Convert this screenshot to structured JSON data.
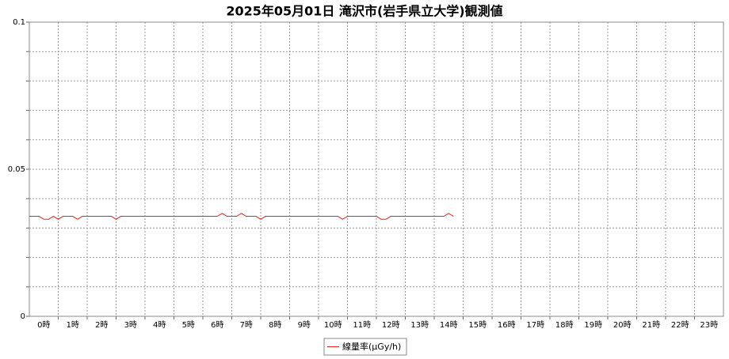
{
  "chart_data": {
    "type": "line",
    "title": "2025年05月01日 滝沢市(岩手県立大学)観測値",
    "x": [
      0,
      10,
      20,
      30,
      40,
      50,
      60,
      70,
      80,
      90,
      100,
      110,
      120,
      130,
      140,
      150,
      160,
      170,
      180,
      190,
      200,
      210,
      220,
      230,
      240,
      250,
      260,
      270,
      280,
      290,
      300,
      310,
      320,
      330,
      340,
      350,
      360,
      370,
      380,
      390,
      400,
      410,
      420,
      430,
      440,
      450,
      460,
      470,
      480,
      490,
      500,
      510,
      520,
      530,
      540,
      550,
      560,
      570,
      580,
      590,
      600,
      610,
      620,
      630,
      640,
      650,
      660,
      670,
      680,
      690,
      700,
      710,
      720,
      730,
      740,
      750,
      760,
      770,
      780,
      790,
      800,
      810,
      820,
      830,
      840,
      850,
      860,
      870,
      880
    ],
    "series": [
      {
        "name": "線量率(μGy/h)",
        "color": "#e8231c",
        "values": [
          0.034,
          0.034,
          0.034,
          0.033,
          0.033,
          0.034,
          0.033,
          0.034,
          0.034,
          0.034,
          0.033,
          0.034,
          0.034,
          0.034,
          0.034,
          0.034,
          0.034,
          0.034,
          0.033,
          0.034,
          0.034,
          0.034,
          0.034,
          0.034,
          0.034,
          0.034,
          0.034,
          0.034,
          0.034,
          0.034,
          0.034,
          0.034,
          0.034,
          0.034,
          0.034,
          0.034,
          0.034,
          0.034,
          0.034,
          0.034,
          0.035,
          0.034,
          0.034,
          0.034,
          0.035,
          0.034,
          0.034,
          0.034,
          0.033,
          0.034,
          0.034,
          0.034,
          0.034,
          0.034,
          0.034,
          0.034,
          0.034,
          0.034,
          0.034,
          0.034,
          0.034,
          0.034,
          0.034,
          0.034,
          0.034,
          0.033,
          0.034,
          0.034,
          0.034,
          0.034,
          0.034,
          0.034,
          0.034,
          0.033,
          0.033,
          0.034,
          0.034,
          0.034,
          0.034,
          0.034,
          0.034,
          0.034,
          0.034,
          0.034,
          0.034,
          0.034,
          0.034,
          0.035,
          0.034
        ]
      }
    ],
    "xlim": [
      0,
      1440
    ],
    "xticks": [
      {
        "value": 30,
        "label": "0時"
      },
      {
        "value": 90,
        "label": "1時"
      },
      {
        "value": 150,
        "label": "2時"
      },
      {
        "value": 210,
        "label": "3時"
      },
      {
        "value": 270,
        "label": "4時"
      },
      {
        "value": 330,
        "label": "5時"
      },
      {
        "value": 390,
        "label": "6時"
      },
      {
        "value": 450,
        "label": "7時"
      },
      {
        "value": 510,
        "label": "8時"
      },
      {
        "value": 570,
        "label": "9時"
      },
      {
        "value": 630,
        "label": "10時"
      },
      {
        "value": 690,
        "label": "11時"
      },
      {
        "value": 750,
        "label": "12時"
      },
      {
        "value": 810,
        "label": "13時"
      },
      {
        "value": 870,
        "label": "14時"
      },
      {
        "value": 930,
        "label": "15時"
      },
      {
        "value": 990,
        "label": "16時"
      },
      {
        "value": 1050,
        "label": "17時"
      },
      {
        "value": 1110,
        "label": "18時"
      },
      {
        "value": 1170,
        "label": "19時"
      },
      {
        "value": 1230,
        "label": "20時"
      },
      {
        "value": 1290,
        "label": "21時"
      },
      {
        "value": 1350,
        "label": "22時"
      },
      {
        "value": 1410,
        "label": "23時"
      }
    ],
    "xgrid": [
      60,
      120,
      180,
      240,
      300,
      360,
      420,
      480,
      540,
      600,
      660,
      720,
      780,
      840,
      900,
      960,
      1020,
      1080,
      1140,
      1200,
      1260,
      1320,
      1380
    ],
    "ylim": [
      0,
      0.1
    ],
    "yticks": [
      0,
      0.05,
      0.1
    ],
    "ygrid": [
      0.01,
      0.02,
      0.03,
      0.04,
      0.05,
      0.06,
      0.07,
      0.08,
      0.09
    ],
    "grid": true
  }
}
